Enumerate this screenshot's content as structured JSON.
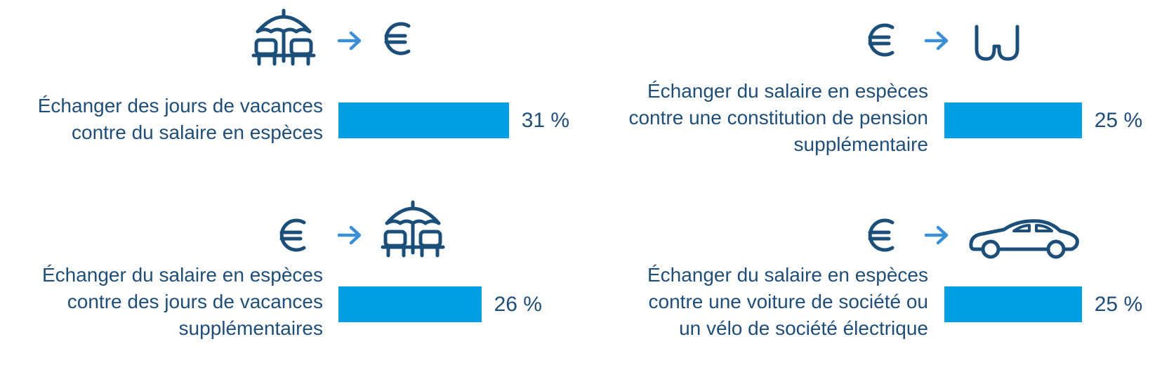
{
  "chart_data": {
    "type": "bar",
    "categories": [
      "Échanger des jours de vacances contre du salaire en espèces",
      "Échanger du salaire en espèces contre une constitution de pension supplémentaire",
      "Échanger du salaire en espèces contre des jours de vacances supplémentaires",
      "Échanger du salaire en espèces contre une voiture de société ou un vélo de société électrique"
    ],
    "values": [
      31,
      25,
      26,
      25
    ],
    "value_labels": [
      "31 %",
      "25 %",
      "26 %",
      "25 %"
    ],
    "color": "#009fe3"
  }
}
